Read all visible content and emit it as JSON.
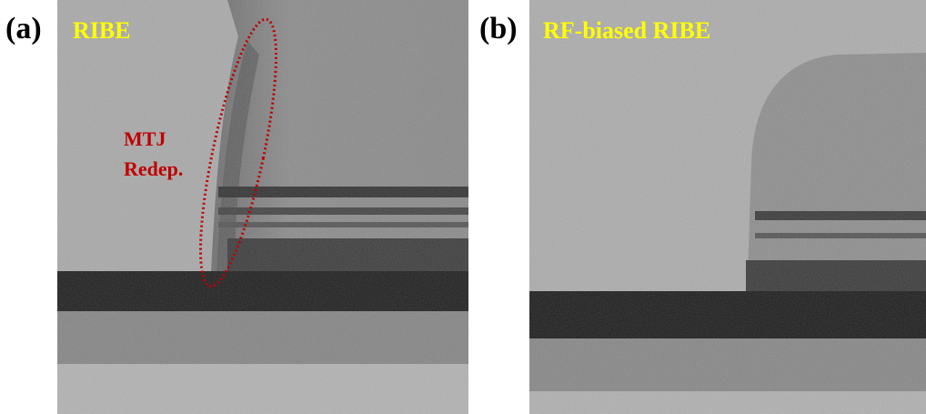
{
  "panels": [
    {
      "label": "(a)",
      "title": "RIBE",
      "annotation": [
        "MTJ",
        "Redep."
      ]
    },
    {
      "label": "(b)",
      "title": "RF-biased RIBE"
    }
  ]
}
